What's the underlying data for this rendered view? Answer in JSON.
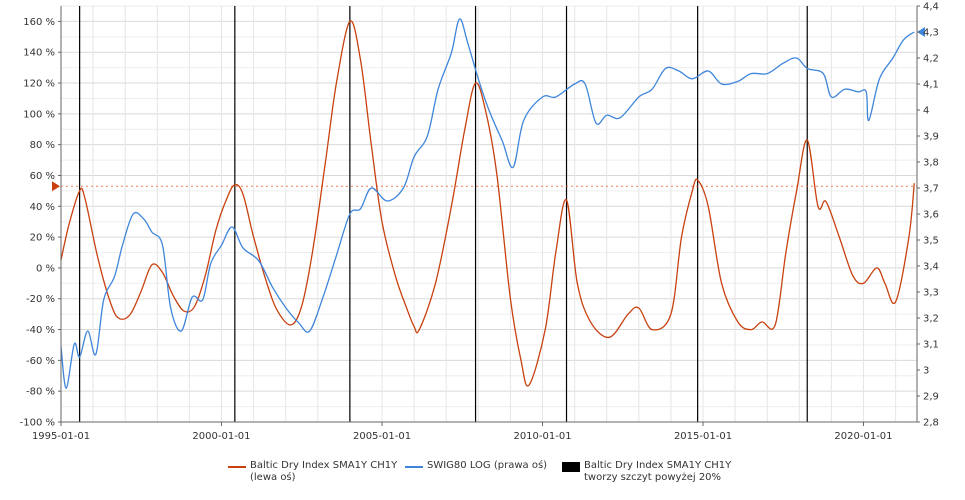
{
  "chart_data": {
    "type": "line",
    "title": "",
    "x_axis": {
      "type": "date",
      "range": [
        "1995-01-01",
        "2021-09-01"
      ],
      "tick_labels": [
        "1995-01-01",
        "2000-01-01",
        "2005-01-01",
        "2010-01-01",
        "2015-01-01",
        "2020-01-01"
      ],
      "grid": true
    },
    "y_left": {
      "range": [
        -100,
        170
      ],
      "tick_labels": [
        "-100 %",
        "-80 %",
        "-60 %",
        "-40 %",
        "-20 %",
        "0 %",
        "20 %",
        "40 %",
        "60 %",
        "80 %",
        "100 %",
        "120 %",
        "140 %",
        "160 %"
      ],
      "tick_values": [
        -100,
        -80,
        -60,
        -40,
        -20,
        0,
        20,
        40,
        60,
        80,
        100,
        120,
        140,
        160
      ]
    },
    "y_right": {
      "range": [
        2.8,
        4.4
      ],
      "tick_labels": [
        "2,8",
        "2,9",
        "3",
        "3,1",
        "3,2",
        "3,3",
        "3,4",
        "3,5",
        "3,6",
        "3,7",
        "3,8",
        "3,9",
        "4",
        "4,1",
        "4,2",
        "4,3",
        "4,4"
      ],
      "tick_values": [
        2.8,
        2.9,
        3.0,
        3.1,
        3.2,
        3.3,
        3.4,
        3.5,
        3.6,
        3.7,
        3.8,
        3.9,
        4.0,
        4.1,
        4.2,
        4.3,
        4.4
      ]
    },
    "threshold": {
      "value": 53,
      "axis": "left",
      "color": "#e8602c",
      "style": "dotted"
    },
    "series": [
      {
        "name": "Baltic Dry Index  SMA1Y CH1Y\n(lewa oś)",
        "axis": "left",
        "color": "#c8410f",
        "points": [
          [
            "1995-01-01",
            5
          ],
          [
            "1995-04-01",
            28
          ],
          [
            "1995-08-01",
            50
          ],
          [
            "1995-10-01",
            45
          ],
          [
            "1996-03-01",
            5
          ],
          [
            "1996-08-01",
            -25
          ],
          [
            "1996-11-01",
            -33
          ],
          [
            "1997-03-01",
            -30
          ],
          [
            "1997-07-01",
            -15
          ],
          [
            "1997-11-01",
            2
          ],
          [
            "1998-03-01",
            -3
          ],
          [
            "1998-07-01",
            -18
          ],
          [
            "1998-11-01",
            -28
          ],
          [
            "1999-03-01",
            -25
          ],
          [
            "1999-07-01",
            -5
          ],
          [
            "1999-11-01",
            25
          ],
          [
            "2000-03-01",
            45
          ],
          [
            "2000-06-01",
            54
          ],
          [
            "2000-09-01",
            48
          ],
          [
            "2001-01-01",
            20
          ],
          [
            "2001-06-01",
            -10
          ],
          [
            "2001-10-01",
            -28
          ],
          [
            "2002-03-01",
            -37
          ],
          [
            "2002-07-01",
            -25
          ],
          [
            "2002-11-01",
            10
          ],
          [
            "2003-04-01",
            70
          ],
          [
            "2003-08-01",
            120
          ],
          [
            "2004-01-01",
            160
          ],
          [
            "2004-05-01",
            135
          ],
          [
            "2004-09-01",
            80
          ],
          [
            "2005-01-01",
            30
          ],
          [
            "2005-06-01",
            -5
          ],
          [
            "2005-10-01",
            -25
          ],
          [
            "2006-01-01",
            -38
          ],
          [
            "2006-03-01",
            -40
          ],
          [
            "2006-09-01",
            -10
          ],
          [
            "2007-03-01",
            40
          ],
          [
            "2007-08-01",
            90
          ],
          [
            "2007-12-01",
            120
          ],
          [
            "2008-04-01",
            100
          ],
          [
            "2008-08-01",
            60
          ],
          [
            "2009-01-01",
            -20
          ],
          [
            "2009-05-01",
            -60
          ],
          [
            "2009-08-01",
            -76
          ],
          [
            "2010-02-01",
            -40
          ],
          [
            "2010-06-01",
            10
          ],
          [
            "2010-10-01",
            44
          ],
          [
            "2011-02-01",
            -10
          ],
          [
            "2011-07-01",
            -35
          ],
          [
            "2012-02-01",
            -45
          ],
          [
            "2012-09-01",
            -30
          ],
          [
            "2013-01-01",
            -26
          ],
          [
            "2013-06-01",
            -40
          ],
          [
            "2014-01-01",
            -30
          ],
          [
            "2014-05-01",
            20
          ],
          [
            "2014-09-01",
            50
          ],
          [
            "2014-11-01",
            57
          ],
          [
            "2015-03-01",
            40
          ],
          [
            "2015-08-01",
            -10
          ],
          [
            "2016-02-01",
            -35
          ],
          [
            "2016-07-01",
            -40
          ],
          [
            "2016-11-01",
            -35
          ],
          [
            "2017-04-01",
            -37
          ],
          [
            "2017-08-01",
            10
          ],
          [
            "2017-12-01",
            50
          ],
          [
            "2018-04-01",
            83
          ],
          [
            "2018-08-01",
            40
          ],
          [
            "2018-11-01",
            43
          ],
          [
            "2019-04-01",
            20
          ],
          [
            "2019-09-01",
            -5
          ],
          [
            "2020-01-01",
            -10
          ],
          [
            "2020-06-01",
            0
          ],
          [
            "2020-09-01",
            -10
          ],
          [
            "2021-01-01",
            -22
          ],
          [
            "2021-06-01",
            20
          ],
          [
            "2021-08-01",
            55
          ]
        ]
      },
      {
        "name": "SWIG80  LOG (prawa oś)",
        "axis": "right",
        "color": "#3f86db",
        "points": [
          [
            "1995-01-01",
            3.09
          ],
          [
            "1995-03-01",
            2.93
          ],
          [
            "1995-06-01",
            3.1
          ],
          [
            "1995-08-01",
            3.05
          ],
          [
            "1995-11-01",
            3.15
          ],
          [
            "1996-02-01",
            3.06
          ],
          [
            "1996-05-01",
            3.27
          ],
          [
            "1996-09-01",
            3.36
          ],
          [
            "1996-12-01",
            3.48
          ],
          [
            "1997-04-01",
            3.6
          ],
          [
            "1997-08-01",
            3.58
          ],
          [
            "1997-11-01",
            3.53
          ],
          [
            "1998-03-01",
            3.48
          ],
          [
            "1998-06-01",
            3.24
          ],
          [
            "1998-10-01",
            3.15
          ],
          [
            "1999-02-01",
            3.28
          ],
          [
            "1999-06-01",
            3.27
          ],
          [
            "1999-09-01",
            3.41
          ],
          [
            "2000-01-01",
            3.48
          ],
          [
            "2000-05-01",
            3.55
          ],
          [
            "2000-09-01",
            3.47
          ],
          [
            "2001-03-01",
            3.42
          ],
          [
            "2001-08-01",
            3.32
          ],
          [
            "2002-01-01",
            3.24
          ],
          [
            "2002-06-01",
            3.18
          ],
          [
            "2002-10-01",
            3.15
          ],
          [
            "2003-03-01",
            3.28
          ],
          [
            "2003-08-01",
            3.44
          ],
          [
            "2004-01-01",
            3.6
          ],
          [
            "2004-05-01",
            3.62
          ],
          [
            "2004-09-01",
            3.7
          ],
          [
            "2005-03-01",
            3.65
          ],
          [
            "2005-09-01",
            3.7
          ],
          [
            "2006-01-01",
            3.82
          ],
          [
            "2006-06-01",
            3.9
          ],
          [
            "2006-10-01",
            4.08
          ],
          [
            "2007-03-01",
            4.22
          ],
          [
            "2007-06-01",
            4.35
          ],
          [
            "2007-09-01",
            4.26
          ],
          [
            "2008-01-01",
            4.12
          ],
          [
            "2008-05-01",
            4.0
          ],
          [
            "2008-10-01",
            3.88
          ],
          [
            "2009-02-01",
            3.78
          ],
          [
            "2009-06-01",
            3.96
          ],
          [
            "2010-01-01",
            4.05
          ],
          [
            "2010-06-01",
            4.05
          ],
          [
            "2011-01-01",
            4.1
          ],
          [
            "2011-05-01",
            4.1
          ],
          [
            "2011-09-01",
            3.95
          ],
          [
            "2012-01-01",
            3.98
          ],
          [
            "2012-06-01",
            3.97
          ],
          [
            "2013-01-01",
            4.05
          ],
          [
            "2013-06-01",
            4.08
          ],
          [
            "2013-11-01",
            4.16
          ],
          [
            "2014-04-01",
            4.15
          ],
          [
            "2014-09-01",
            4.12
          ],
          [
            "2015-03-01",
            4.15
          ],
          [
            "2015-08-01",
            4.1
          ],
          [
            "2016-02-01",
            4.11
          ],
          [
            "2016-07-01",
            4.14
          ],
          [
            "2017-01-01",
            4.14
          ],
          [
            "2017-07-01",
            4.18
          ],
          [
            "2017-12-01",
            4.2
          ],
          [
            "2018-04-01",
            4.16
          ],
          [
            "2018-10-01",
            4.14
          ],
          [
            "2019-01-01",
            4.05
          ],
          [
            "2019-06-01",
            4.08
          ],
          [
            "2019-11-01",
            4.07
          ],
          [
            "2020-02-01",
            4.07
          ],
          [
            "2020-03-01",
            3.96
          ],
          [
            "2020-07-01",
            4.12
          ],
          [
            "2020-12-01",
            4.2
          ],
          [
            "2021-04-01",
            4.27
          ],
          [
            "2021-08-01",
            4.3
          ]
        ]
      }
    ],
    "peak_markers": {
      "name": "Baltic Dry Index  SMA1Y CH1Y\ntworzy szczyt powyżej 20%",
      "color": "#000000",
      "dates": [
        "1995-08-01",
        "2000-06-01",
        "2004-01-01",
        "2007-12-01",
        "2010-10-01",
        "2014-11-01",
        "2018-04-01"
      ]
    },
    "legend": {
      "placement": "bottom"
    }
  }
}
